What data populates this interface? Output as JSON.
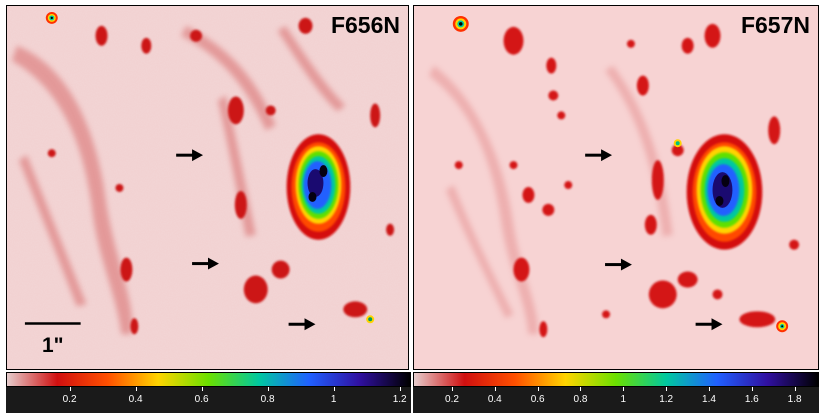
{
  "panels": [
    {
      "filter": "F656N",
      "scale_label": "1\"",
      "colorbar_ticks": [
        "0.2",
        "0.4",
        "0.6",
        "0.8",
        "1",
        "1.2"
      ]
    },
    {
      "filter": "F657N",
      "colorbar_ticks": [
        "0.2",
        "0.4",
        "0.6",
        "0.8",
        "1",
        "1.2",
        "1.4",
        "1.6",
        "1.8"
      ]
    }
  ],
  "colors": {
    "background_left": "#f3d6d6",
    "background_right": "#f7d3d3",
    "emission": "#c81414",
    "colormap": [
      "#e5cccc",
      "#d01010",
      "#ff5000",
      "#ffd400",
      "#6be000",
      "#00c8a0",
      "#2060ff",
      "#3010a0",
      "#000000"
    ]
  }
}
